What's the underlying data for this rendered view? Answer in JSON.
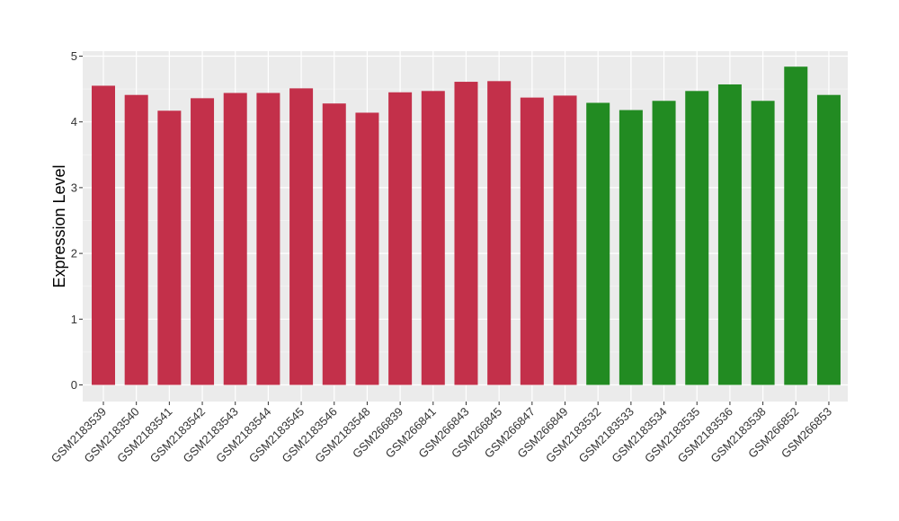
{
  "chart_data": {
    "type": "bar",
    "title": "",
    "xlabel": "",
    "ylabel": "Expression Level",
    "ylim": [
      0,
      5
    ],
    "yticks": [
      0,
      1,
      2,
      3,
      4,
      5
    ],
    "grid": true,
    "legend": "none",
    "colors": {
      "group_red": "#C3304A",
      "group_green": "#228B22",
      "panel_bg": "#EBEBEB",
      "grid": "#FFFFFF"
    },
    "categories": [
      "GSM2183539",
      "GSM2183540",
      "GSM2183541",
      "GSM2183542",
      "GSM2183543",
      "GSM2183544",
      "GSM2183545",
      "GSM2183546",
      "GSM2183548",
      "GSM266839",
      "GSM266841",
      "GSM266843",
      "GSM266845",
      "GSM266847",
      "GSM266849",
      "GSM2183532",
      "GSM2183533",
      "GSM2183534",
      "GSM2183535",
      "GSM2183536",
      "GSM2183538",
      "GSM266852",
      "GSM266853"
    ],
    "values": [
      4.55,
      4.41,
      4.17,
      4.36,
      4.44,
      4.44,
      4.51,
      4.28,
      4.14,
      4.45,
      4.47,
      4.61,
      4.62,
      4.37,
      4.4,
      4.29,
      4.18,
      4.32,
      4.47,
      4.57,
      4.32,
      4.84,
      4.41
    ],
    "groups": [
      "red",
      "red",
      "red",
      "red",
      "red",
      "red",
      "red",
      "red",
      "red",
      "red",
      "red",
      "red",
      "red",
      "red",
      "red",
      "green",
      "green",
      "green",
      "green",
      "green",
      "green",
      "green",
      "green"
    ]
  }
}
